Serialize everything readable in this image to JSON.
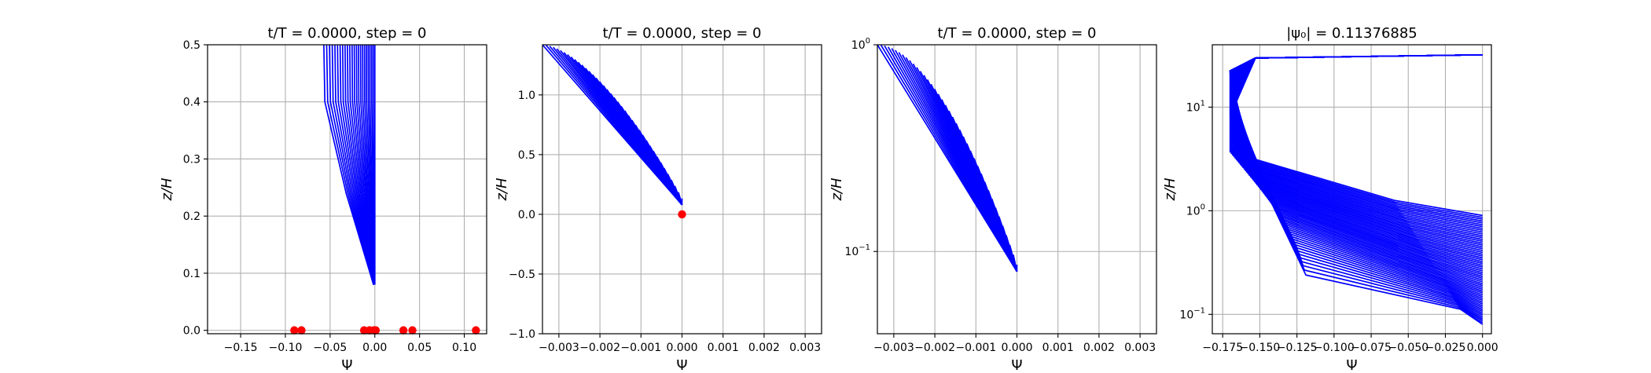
{
  "chart_data": [
    {
      "type": "line",
      "title": "t/T = 0.0000, step = 0",
      "xlabel": "Ψ",
      "ylabel": "z/H",
      "xscale": "linear",
      "yscale": "linear",
      "xlim": [
        -0.187,
        0.125
      ],
      "ylim": [
        -0.006,
        0.5
      ],
      "xticks": [
        -0.15,
        -0.1,
        -0.05,
        0.0,
        0.05,
        0.1
      ],
      "xtick_labels": [
        "−0.15",
        "−0.10",
        "−0.05",
        "0.00",
        "0.05",
        "0.10"
      ],
      "yticks": [
        0.0,
        0.1,
        0.2,
        0.3,
        0.4,
        0.5
      ],
      "ytick_labels": [
        "0.0",
        "0.1",
        "0.2",
        "0.3",
        "0.4",
        "0.5"
      ],
      "grid": true,
      "series_color": "#0000ff",
      "curve_fan": {
        "count": 24,
        "x_tip": 0.0,
        "z_base": 0.08,
        "x_at_top_min": -0.057,
        "z_top": 0.5
      },
      "points": {
        "color": "#ff0000",
        "x": [
          -0.09,
          -0.082,
          -0.012,
          -0.006,
          -0.001,
          0.001,
          0.032,
          0.042,
          0.113
        ],
        "y": [
          0,
          0,
          0,
          0,
          0,
          0,
          0,
          0,
          0
        ]
      }
    },
    {
      "type": "line",
      "title": "t/T = 0.0000, step = 0",
      "xlabel": "Ψ",
      "ylabel": "z/H",
      "xscale": "linear",
      "yscale": "linear",
      "xlim": [
        -0.0034,
        0.0034
      ],
      "ylim": [
        -1.0,
        1.42
      ],
      "xticks": [
        -0.003,
        -0.002,
        -0.001,
        0.0,
        0.001,
        0.002,
        0.003
      ],
      "xtick_labels": [
        "−0.003",
        "−0.002",
        "−0.001",
        "0.000",
        "0.001",
        "0.002",
        "0.003"
      ],
      "yticks": [
        -1.0,
        -0.5,
        0.0,
        0.5,
        1.0
      ],
      "ytick_labels": [
        "−1.0",
        "−0.5",
        "0.0",
        "0.5",
        "1.0"
      ],
      "grid": true,
      "series_color": "#0000ff",
      "curve_fan": {
        "count": 40,
        "x_tip": 0.0,
        "z_tip": 0.08,
        "x_left": -0.0034,
        "z_top": 1.42
      },
      "points": {
        "color": "#ff0000",
        "x": [
          0.0
        ],
        "y": [
          0.0
        ]
      }
    },
    {
      "type": "line",
      "title": "t/T = 0.0000, step = 0",
      "xlabel": "Ψ",
      "ylabel": "z/H",
      "xscale": "linear",
      "yscale": "log",
      "xlim": [
        -0.0034,
        0.0034
      ],
      "ylim": [
        0.04,
        1.0
      ],
      "xticks": [
        -0.003,
        -0.002,
        -0.001,
        0.0,
        0.001,
        0.002,
        0.003
      ],
      "xtick_labels": [
        "−0.003",
        "−0.002",
        "−0.001",
        "0.000",
        "0.001",
        "0.002",
        "0.003"
      ],
      "yticks": [
        0.1,
        1.0
      ],
      "ytick_labels": [
        {
          "base": "10",
          "exp": "−1"
        },
        {
          "base": "10",
          "exp": "0"
        }
      ],
      "grid": true,
      "series_color": "#0000ff",
      "curve_fan": {
        "count": 40,
        "x_tip": 0.0,
        "z_base": 0.08,
        "x_left": -0.0034,
        "z_top": 1.0
      }
    },
    {
      "type": "line",
      "title": "|ψ₀| = 0.11376885",
      "xlabel": "Ψ",
      "ylabel": "z/H",
      "xscale": "linear",
      "yscale": "log",
      "xlim": [
        -0.182,
        0.006
      ],
      "ylim": [
        0.065,
        40
      ],
      "xticks": [
        -0.175,
        -0.15,
        -0.125,
        -0.1,
        -0.075,
        -0.05,
        -0.025,
        0.0
      ],
      "xtick_labels": [
        "−0.175",
        "−0.150",
        "−0.125",
        "−0.100",
        "−0.075",
        "−0.050",
        "−0.025",
        "0.000"
      ],
      "yticks": [
        0.1,
        1.0,
        10.0
      ],
      "ytick_labels": [
        {
          "base": "10",
          "exp": "−1"
        },
        {
          "base": "10",
          "exp": "0"
        },
        {
          "base": "10",
          "exp": "1"
        }
      ],
      "grid": true,
      "series_color": "#0000ff",
      "curve_fan": {
        "count": 60,
        "x_min": -0.17,
        "z_bottom": 0.08,
        "z_top": 32
      }
    }
  ]
}
